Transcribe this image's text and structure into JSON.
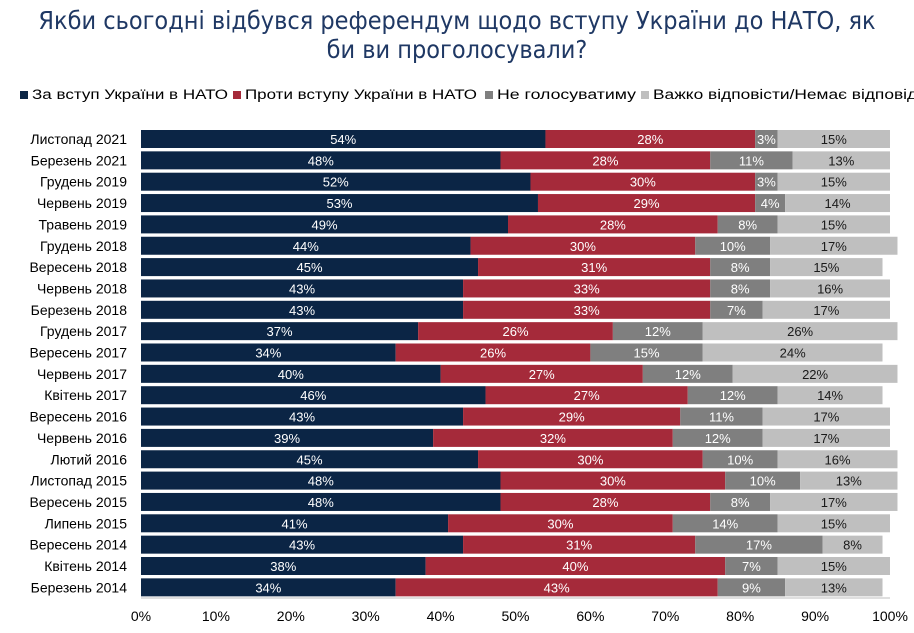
{
  "chart_data": {
    "type": "bar",
    "orientation": "horizontal",
    "stacked": true,
    "percent_stacked": true,
    "title": "Якби сьогодні відбувся референдум щодо вступу України до НАТО, як би ви проголосували?",
    "title_lines": [
      "Якби сьогодні відбувся референдум щодо вступу України до НАТО, як",
      "би ви проголосували?"
    ],
    "categories": [
      "Листопад 2021",
      "Березень 2021",
      "Грудень 2019",
      "Червень 2019",
      "Травень 2019",
      "Грудень 2018",
      "Вересень 2018",
      "Червень 2018",
      "Березень 2018",
      "Грудень 2017",
      "Вересень 2017",
      "Червень 2017",
      "Квітень 2017",
      "Вересень 2016",
      "Червень 2016",
      "Лютий 2016",
      "Листопад 2015",
      "Вересень 2015",
      "Липень 2015",
      "Вересень 2014",
      "Квітень 2014",
      "Березень 2014"
    ],
    "series": [
      {
        "name": "За вступ України в НАТО",
        "color": "#0b2545",
        "values": [
          54,
          48,
          52,
          53,
          49,
          44,
          45,
          43,
          43,
          37,
          34,
          40,
          46,
          43,
          39,
          45,
          48,
          48,
          41,
          43,
          38,
          34
        ]
      },
      {
        "name": "Проти вступу України в НАТО",
        "color": "#a52a3a",
        "values": [
          28,
          28,
          30,
          29,
          28,
          30,
          31,
          33,
          33,
          26,
          26,
          27,
          27,
          29,
          32,
          30,
          30,
          28,
          30,
          31,
          40,
          43
        ]
      },
      {
        "name": "Не голосуватиму",
        "color": "#7f7f7f",
        "values": [
          3,
          11,
          3,
          4,
          8,
          10,
          8,
          8,
          7,
          12,
          15,
          12,
          12,
          11,
          12,
          10,
          10,
          8,
          14,
          17,
          7,
          9
        ]
      },
      {
        "name": "Важко відповісти/Немає відповіді",
        "color": "#bfbfbf",
        "values": [
          15,
          13,
          15,
          14,
          15,
          17,
          15,
          16,
          17,
          26,
          24,
          22,
          14,
          17,
          17,
          16,
          13,
          17,
          15,
          8,
          15,
          13
        ]
      }
    ],
    "xlim": [
      0,
      100
    ],
    "xticks": [
      "0%",
      "10%",
      "20%",
      "30%",
      "40%",
      "50%",
      "60%",
      "70%",
      "80%",
      "90%",
      "100%"
    ],
    "value_suffix": "%",
    "legend_position": "top",
    "grid": false
  }
}
